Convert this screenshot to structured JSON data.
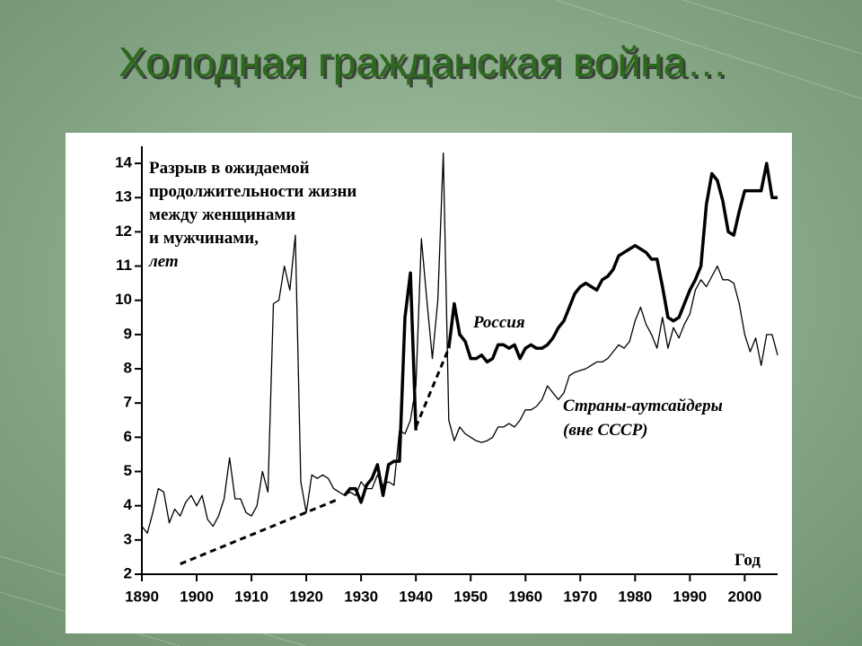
{
  "title": "Холодная гражданская война…",
  "chart_data": {
    "type": "line",
    "annotation_lines": [
      "Разрыв в ожидаемой",
      "продолжительности жизни",
      "между женщинами",
      "и мужчинами,"
    ],
    "annotation_unit": "лет",
    "xlabel": "Год",
    "xlim": [
      1890,
      2006
    ],
    "ylim": [
      2,
      14.5
    ],
    "xticks": [
      1890,
      1900,
      1910,
      1920,
      1930,
      1940,
      1950,
      1960,
      1970,
      1980,
      1990,
      2000
    ],
    "yticks": [
      2,
      3,
      4,
      5,
      6,
      7,
      8,
      9,
      10,
      11,
      12,
      13,
      14
    ],
    "x": [
      1890,
      1891,
      1892,
      1893,
      1894,
      1895,
      1896,
      1897,
      1898,
      1899,
      1900,
      1901,
      1902,
      1903,
      1904,
      1905,
      1906,
      1907,
      1908,
      1909,
      1910,
      1911,
      1912,
      1913,
      1914,
      1915,
      1916,
      1917,
      1918,
      1919,
      1920,
      1921,
      1922,
      1923,
      1924,
      1925,
      1926,
      1927,
      1928,
      1929,
      1930,
      1931,
      1932,
      1933,
      1934,
      1935,
      1936,
      1937,
      1938,
      1939,
      1940,
      1941,
      1942,
      1943,
      1944,
      1945,
      1946,
      1947,
      1948,
      1949,
      1950,
      1951,
      1952,
      1953,
      1954,
      1955,
      1956,
      1957,
      1958,
      1959,
      1960,
      1961,
      1962,
      1963,
      1964,
      1965,
      1966,
      1967,
      1968,
      1969,
      1970,
      1971,
      1972,
      1973,
      1974,
      1975,
      1976,
      1977,
      1978,
      1979,
      1980,
      1981,
      1982,
      1983,
      1984,
      1985,
      1986,
      1987,
      1988,
      1989,
      1990,
      1991,
      1992,
      1993,
      1994,
      1995,
      1996,
      1997,
      1998,
      1999,
      2000,
      2001,
      2002,
      2003,
      2004,
      2005,
      2006
    ],
    "series": [
      {
        "name": "Страны-аутсайдеры",
        "note": "(вне СССР)",
        "color": "#000000",
        "width": 1.3,
        "values": [
          3.4,
          3.2,
          3.8,
          4.5,
          4.4,
          3.5,
          3.9,
          3.7,
          4.1,
          4.3,
          4.0,
          4.3,
          3.6,
          3.4,
          3.7,
          4.2,
          5.4,
          4.2,
          4.2,
          3.8,
          3.7,
          4.0,
          5.0,
          4.4,
          9.9,
          10.0,
          11.0,
          10.3,
          11.9,
          4.7,
          3.8,
          4.9,
          4.8,
          4.9,
          4.8,
          4.5,
          4.4,
          4.3,
          4.4,
          4.3,
          4.7,
          4.5,
          4.5,
          4.9,
          4.6,
          4.7,
          4.6,
          6.2,
          6.1,
          6.5,
          7.5,
          11.8,
          10.0,
          8.3,
          10.0,
          14.3,
          6.5,
          5.9,
          6.3,
          6.1,
          6.0,
          5.9,
          5.85,
          5.9,
          6.0,
          6.3,
          6.3,
          6.4,
          6.3,
          6.5,
          6.8,
          6.8,
          6.9,
          7.1,
          7.5,
          7.3,
          7.1,
          7.3,
          7.8,
          7.9,
          7.95,
          8.0,
          8.1,
          8.2,
          8.2,
          8.3,
          8.5,
          8.7,
          8.6,
          8.8,
          9.4,
          9.8,
          9.3,
          9.0,
          8.6,
          9.5,
          8.6,
          9.2,
          8.9,
          9.3,
          9.6,
          10.3,
          10.6,
          10.4,
          10.7,
          11.0,
          10.6,
          10.6,
          10.5,
          9.9,
          9.0,
          8.5,
          8.9,
          8.1,
          9.0,
          9.0,
          8.4
        ]
      },
      {
        "name": "Россия",
        "color": "#000000",
        "width": 3.5,
        "values": [
          null,
          null,
          null,
          null,
          null,
          null,
          null,
          null,
          null,
          null,
          null,
          null,
          null,
          null,
          null,
          null,
          null,
          null,
          null,
          null,
          null,
          null,
          null,
          null,
          null,
          null,
          null,
          null,
          null,
          null,
          null,
          null,
          null,
          null,
          null,
          null,
          null,
          4.3,
          4.5,
          4.5,
          4.1,
          4.6,
          4.8,
          5.2,
          4.3,
          5.2,
          5.3,
          5.3,
          9.5,
          10.8,
          6.2,
          null,
          null,
          null,
          null,
          null,
          8.6,
          9.9,
          9.0,
          8.8,
          8.3,
          8.3,
          8.4,
          8.2,
          8.3,
          8.7,
          8.7,
          8.6,
          8.7,
          8.3,
          8.6,
          8.7,
          8.6,
          8.6,
          8.7,
          8.9,
          9.2,
          9.4,
          9.8,
          10.2,
          10.4,
          10.5,
          10.4,
          10.3,
          10.6,
          10.7,
          10.9,
          11.3,
          11.4,
          11.5,
          11.6,
          11.5,
          11.4,
          11.2,
          11.2,
          10.4,
          9.5,
          9.4,
          9.5,
          9.9,
          10.3,
          10.6,
          11.0,
          12.8,
          13.7,
          13.5,
          12.9,
          12.0,
          11.9,
          12.6,
          13.2,
          13.2,
          13.2,
          13.2,
          14.0,
          13.0,
          13.0
        ]
      }
    ],
    "trend_lines": [
      {
        "x": [
          1897,
          1926
        ],
        "y": [
          2.3,
          4.2
        ]
      },
      {
        "x": [
          1940,
          1946
        ],
        "y": [
          6.3,
          8.6
        ]
      }
    ]
  }
}
